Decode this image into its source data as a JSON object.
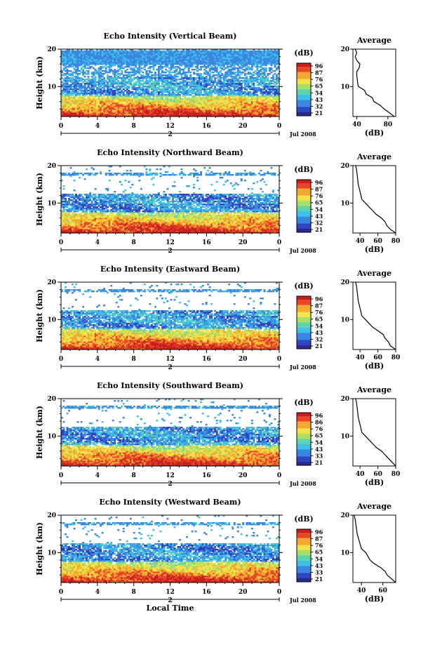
{
  "chart_data": [
    {
      "type": "heatmap",
      "title": "Echo Intensity (Vertical Beam)",
      "ylabel": "Height (km)",
      "ylim": [
        2,
        20
      ],
      "y_ticks": [
        "10",
        "20"
      ],
      "x_ticks": [
        "0",
        "4",
        "8",
        "12",
        "16",
        "20",
        "0"
      ],
      "xlim": [
        0,
        24
      ],
      "date_marker": "2",
      "date_label": "Jul 2008",
      "colorbar": {
        "label": "(dB)",
        "ticks": [
          "96",
          "87",
          "76",
          "65",
          "54",
          "43",
          "32",
          "21"
        ]
      },
      "average": {
        "title": "Average",
        "xlabel": "(dB)",
        "x_ticks": [
          "40",
          "80"
        ],
        "y_ticks": [
          "10",
          "20"
        ],
        "xlim": [
          35,
          90
        ],
        "profile": [
          [
            88,
            2
          ],
          [
            82,
            3
          ],
          [
            75,
            4
          ],
          [
            70,
            5
          ],
          [
            62,
            6
          ],
          [
            60,
            7
          ],
          [
            52,
            8
          ],
          [
            50,
            9
          ],
          [
            42,
            10
          ],
          [
            41,
            11
          ],
          [
            40,
            13
          ],
          [
            40,
            14
          ],
          [
            43,
            15
          ],
          [
            44,
            16
          ],
          [
            40,
            17
          ],
          [
            38,
            18
          ],
          [
            40,
            19
          ],
          [
            38,
            20
          ]
        ]
      }
    },
    {
      "type": "heatmap",
      "title": "Echo Intensity (Northward Beam)",
      "ylabel": "Height (km)",
      "ylim": [
        2,
        20
      ],
      "y_ticks": [
        "10",
        "20"
      ],
      "x_ticks": [
        "0",
        "4",
        "8",
        "12",
        "16",
        "20",
        "0"
      ],
      "xlim": [
        0,
        24
      ],
      "date_marker": "2",
      "date_label": "Jul 2008",
      "colorbar": {
        "label": "(dB)",
        "ticks": [
          "96",
          "87",
          "76",
          "65",
          "54",
          "43",
          "32",
          "21"
        ]
      },
      "average": {
        "title": "Average",
        "xlabel": "(dB)",
        "x_ticks": [
          "40",
          "60",
          "80"
        ],
        "y_ticks": [
          "10",
          "20"
        ],
        "xlim": [
          32,
          80
        ],
        "profile": [
          [
            80,
            2
          ],
          [
            74,
            3
          ],
          [
            70,
            4
          ],
          [
            68,
            5
          ],
          [
            64,
            6
          ],
          [
            58,
            7
          ],
          [
            54,
            8
          ],
          [
            50,
            9
          ],
          [
            46,
            10
          ],
          [
            42,
            11
          ],
          [
            40,
            13
          ],
          [
            38,
            15
          ],
          [
            37,
            17
          ],
          [
            36,
            19
          ],
          [
            35,
            20
          ]
        ]
      }
    },
    {
      "type": "heatmap",
      "title": "Echo Intensity (Eastward Beam)",
      "ylabel": "Height (km)",
      "ylim": [
        2,
        20
      ],
      "y_ticks": [
        "10",
        "20"
      ],
      "x_ticks": [
        "0",
        "4",
        "8",
        "12",
        "16",
        "20",
        "0"
      ],
      "xlim": [
        0,
        24
      ],
      "date_marker": "2",
      "date_label": "Jul 2008",
      "colorbar": {
        "label": "(dB)",
        "ticks": [
          "96",
          "87",
          "76",
          "65",
          "54",
          "43",
          "32",
          "21"
        ]
      },
      "average": {
        "title": "Average",
        "xlabel": "(dB)",
        "x_ticks": [
          "40",
          "60",
          "80"
        ],
        "y_ticks": [
          "10",
          "20"
        ],
        "xlim": [
          32,
          80
        ],
        "profile": [
          [
            80,
            2
          ],
          [
            74,
            3
          ],
          [
            72,
            4
          ],
          [
            68,
            5
          ],
          [
            66,
            6
          ],
          [
            60,
            7
          ],
          [
            54,
            8
          ],
          [
            50,
            9
          ],
          [
            46,
            10
          ],
          [
            42,
            11
          ],
          [
            40,
            13
          ],
          [
            38,
            15
          ],
          [
            37,
            17
          ],
          [
            36,
            19
          ],
          [
            35,
            20
          ]
        ]
      }
    },
    {
      "type": "heatmap",
      "title": "Echo Intensity (Southward Beam)",
      "ylabel": "Height (km)",
      "ylim": [
        2,
        20
      ],
      "y_ticks": [
        "10",
        "20"
      ],
      "x_ticks": [
        "0",
        "4",
        "8",
        "12",
        "16",
        "20",
        "0"
      ],
      "xlim": [
        0,
        24
      ],
      "date_marker": "2",
      "date_label": "Jul 2008",
      "colorbar": {
        "label": "(dB)",
        "ticks": [
          "96",
          "86",
          "76",
          "65",
          "54",
          "43",
          "33",
          "21"
        ]
      },
      "average": {
        "title": "Average",
        "xlabel": "(dB)",
        "x_ticks": [
          "40",
          "60",
          "80"
        ],
        "y_ticks": [
          "10",
          "20"
        ],
        "xlim": [
          32,
          80
        ],
        "profile": [
          [
            80,
            2
          ],
          [
            76,
            3
          ],
          [
            72,
            4
          ],
          [
            68,
            5
          ],
          [
            64,
            6
          ],
          [
            58,
            7
          ],
          [
            54,
            8
          ],
          [
            50,
            9
          ],
          [
            46,
            10
          ],
          [
            42,
            11
          ],
          [
            40,
            13
          ],
          [
            38,
            15
          ],
          [
            37,
            17
          ],
          [
            36,
            19
          ],
          [
            35,
            20
          ]
        ]
      }
    },
    {
      "type": "heatmap",
      "title": "Echo Intensity (Westward Beam)",
      "ylabel": "Height (km)",
      "ylim": [
        2,
        20
      ],
      "y_ticks": [
        "10",
        "20"
      ],
      "x_ticks": [
        "0",
        "4",
        "8",
        "12",
        "16",
        "20",
        "0"
      ],
      "xlim": [
        0,
        24
      ],
      "date_marker": "2",
      "date_label": "Jul 2008",
      "colorbar": {
        "label": "(dB)",
        "ticks": [
          "96",
          "87",
          "76",
          "65",
          "54",
          "43",
          "33",
          "21"
        ]
      },
      "average": {
        "title": "Average",
        "xlabel": "(dB)",
        "x_ticks": [
          "40",
          "60"
        ],
        "y_ticks": [
          "10",
          "20"
        ],
        "xlim": [
          32,
          72
        ],
        "profile": [
          [
            72,
            2
          ],
          [
            68,
            3
          ],
          [
            64,
            4
          ],
          [
            62,
            5
          ],
          [
            58,
            6
          ],
          [
            52,
            7
          ],
          [
            48,
            8
          ],
          [
            46,
            9
          ],
          [
            44,
            10
          ],
          [
            40,
            11
          ],
          [
            38,
            13
          ],
          [
            36,
            15
          ],
          [
            35,
            17
          ],
          [
            34,
            19
          ],
          [
            33,
            20
          ]
        ]
      }
    }
  ],
  "xlabel": "Local Time",
  "colors": {
    "colormap": [
      "#2b2a8c",
      "#2e44c0",
      "#3a86e0",
      "#3fc0e8",
      "#5fd3b0",
      "#a8e06a",
      "#f3e34a",
      "#f5a830",
      "#e8452a",
      "#c81e1e"
    ]
  }
}
